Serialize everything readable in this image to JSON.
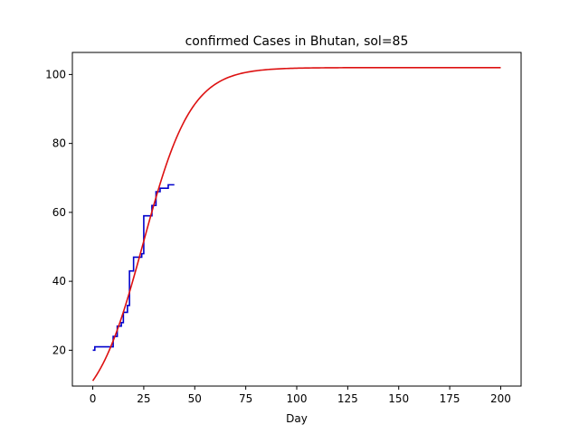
{
  "chart_data": {
    "type": "line",
    "title": "confirmed Cases in Bhutan, sol=85",
    "xlabel": "Day",
    "ylabel": "",
    "xlim": [
      -10,
      210
    ],
    "ylim": [
      9.6,
      106.4
    ],
    "xticks": [
      0,
      25,
      50,
      75,
      100,
      125,
      150,
      175,
      200
    ],
    "yticks": [
      20,
      40,
      60,
      80,
      100
    ],
    "grid": false,
    "legend": "none",
    "series": [
      {
        "color": "#0000cc",
        "style": "step",
        "x": [
          0,
          1,
          2,
          3,
          4,
          5,
          6,
          7,
          8,
          9,
          10,
          11,
          12,
          13,
          14,
          15,
          16,
          17,
          18,
          19,
          20,
          21,
          22,
          23,
          24,
          25,
          26,
          27,
          28,
          29,
          30,
          31,
          32,
          33,
          34,
          35,
          36,
          37,
          38,
          39,
          40
        ],
        "y": [
          20,
          21,
          21,
          21,
          21,
          21,
          21,
          21,
          21,
          21,
          24,
          24,
          27,
          27,
          28,
          31,
          31,
          33,
          43,
          43,
          47,
          47,
          47,
          47,
          48,
          59,
          59,
          59,
          59,
          62,
          62,
          66,
          66,
          67,
          67,
          67,
          67,
          68,
          68,
          68,
          68
        ]
      },
      {
        "color": "#dd1111",
        "style": "line",
        "function": "logistic",
        "params": {
          "L": 102,
          "k": 0.085,
          "x0": 24.7
        },
        "x_range": [
          0,
          200
        ]
      }
    ]
  }
}
